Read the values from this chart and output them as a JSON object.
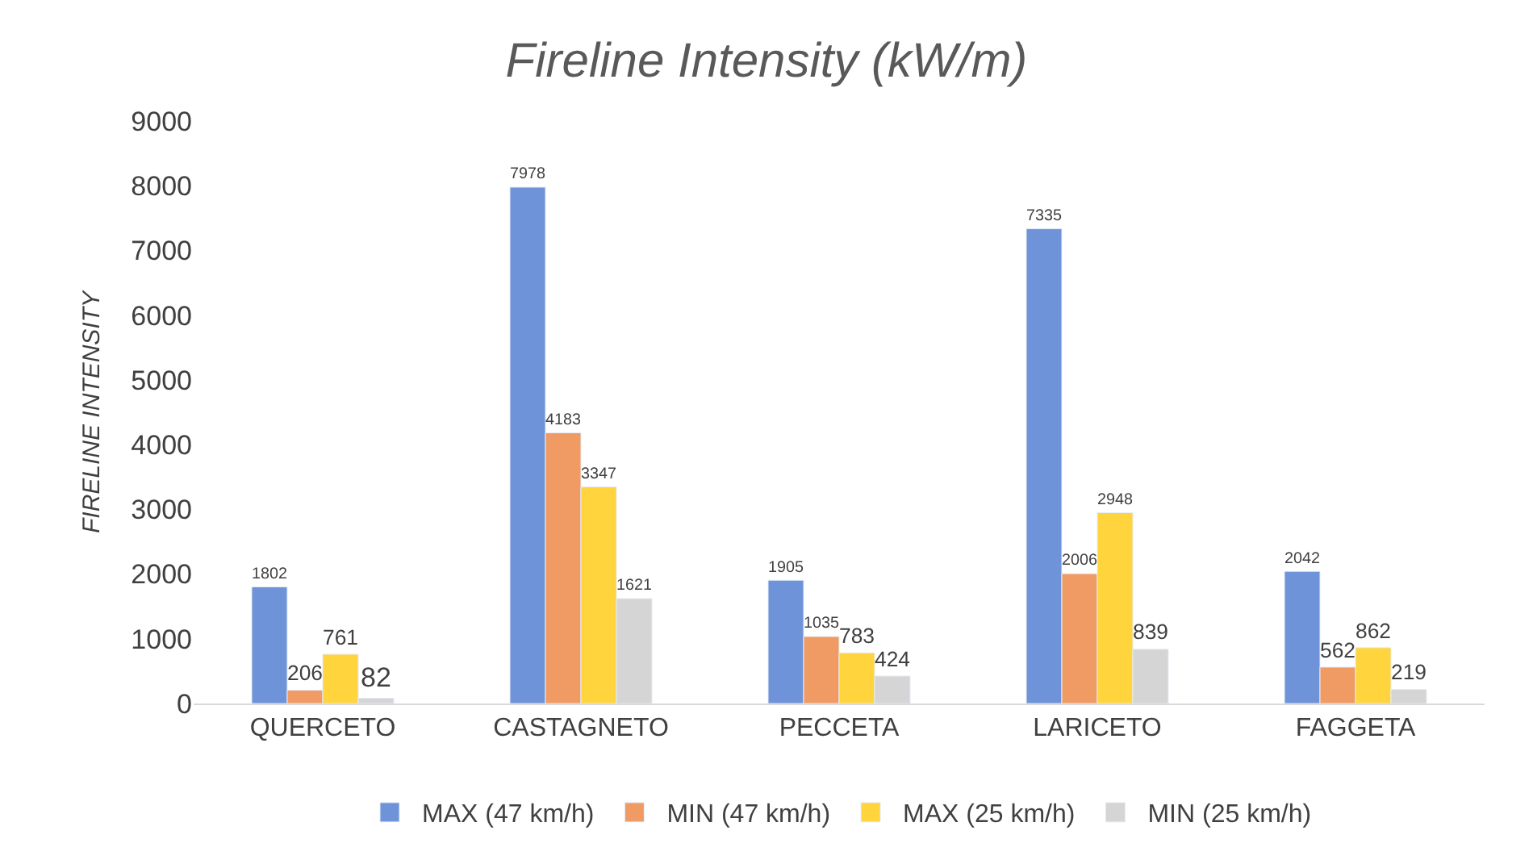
{
  "chart_data": {
    "type": "bar",
    "title": "Fireline Intensity (kW/m)",
    "ylabel": "FIRELINE INTENSITY",
    "categories": [
      "QUERCETO",
      "CASTAGNETO",
      "PECCETA",
      "LARICETO",
      "FAGGETA"
    ],
    "series": [
      {
        "name": "MAX (47 km/h)",
        "color": "#6f93d8",
        "values": [
          1802,
          7978,
          1905,
          7335,
          2042
        ]
      },
      {
        "name": "MIN (47 km/h)",
        "color": "#f09b63",
        "values": [
          206,
          4183,
          1035,
          2006,
          562
        ]
      },
      {
        "name": "MAX (25 km/h)",
        "color": "#ffd43d",
        "values": [
          761,
          3347,
          783,
          2948,
          862
        ]
      },
      {
        "name": "MIN (25 km/h)",
        "color": "#d5d5d5",
        "values": [
          82,
          1621,
          424,
          839,
          219
        ]
      }
    ],
    "ylim": [
      0,
      9000
    ],
    "yticks": [
      0,
      1000,
      2000,
      3000,
      4000,
      5000,
      6000,
      7000,
      8000,
      9000
    ],
    "data_labels": true,
    "legend": "bottom"
  }
}
